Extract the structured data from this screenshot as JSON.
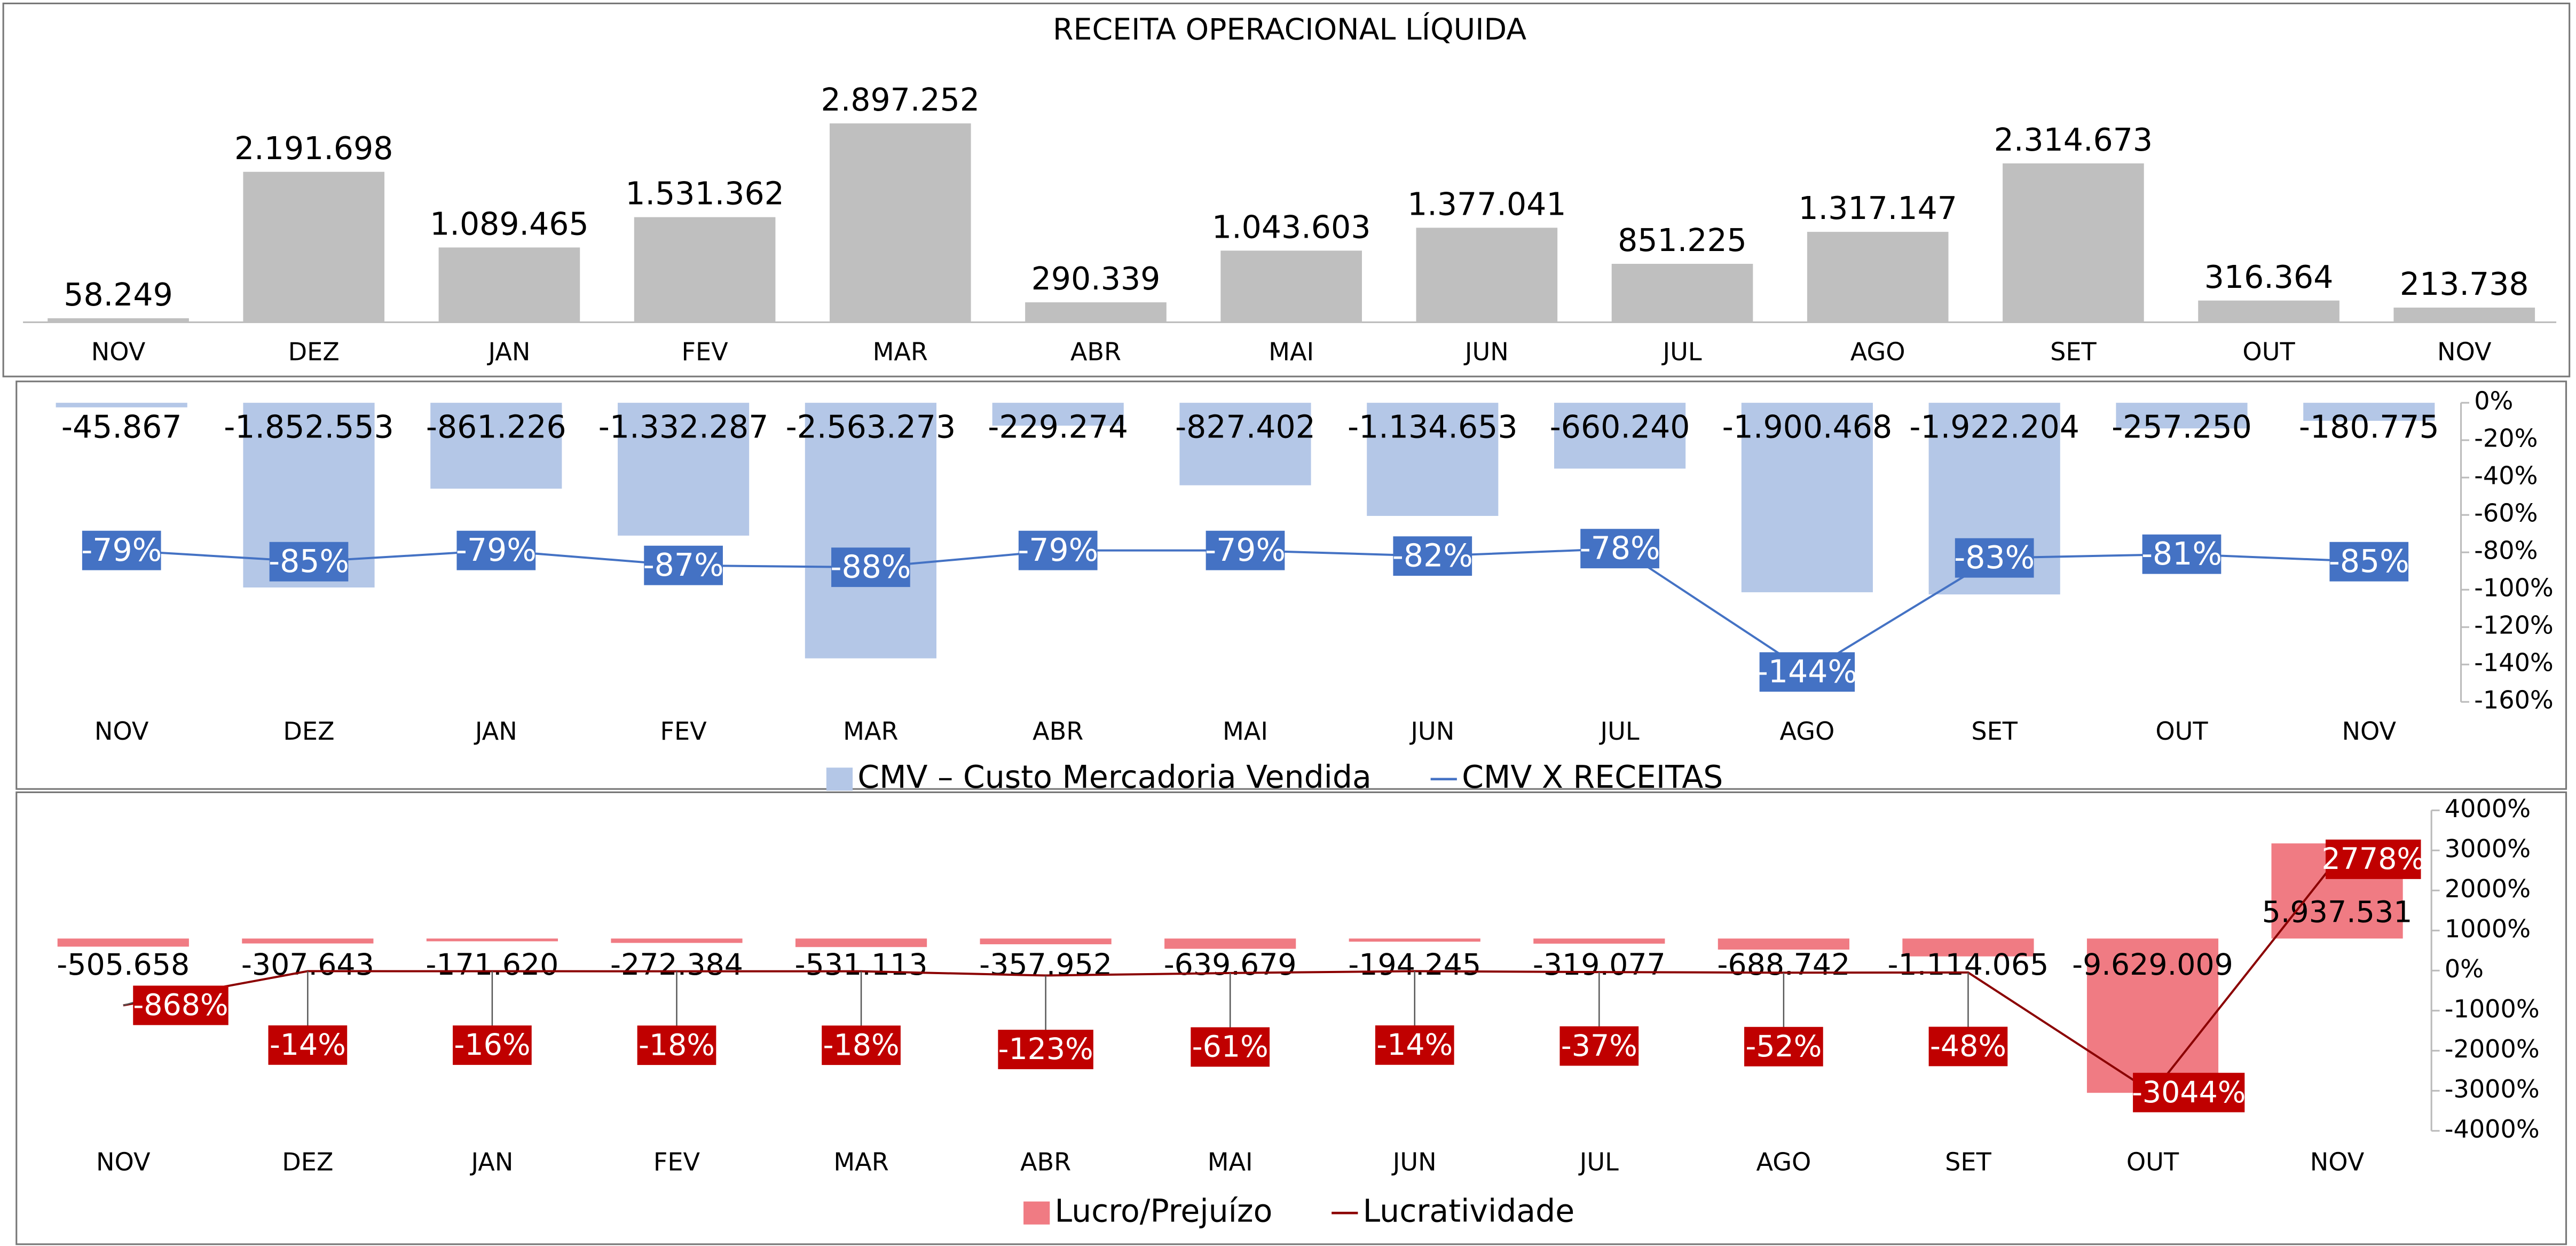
{
  "chart_data": [
    {
      "type": "bar",
      "title": "RECEITA OPERACIONAL LÍQUIDA",
      "categories": [
        "NOV",
        "DEZ",
        "JAN",
        "FEV",
        "MAR",
        "ABR",
        "MAI",
        "JUN",
        "JUL",
        "AGO",
        "SET",
        "OUT",
        "NOV"
      ],
      "series": [
        {
          "name": "Receita",
          "color": "#bfbfbf",
          "values": [
            58249,
            2191698,
            1089465,
            1531362,
            2897252,
            290339,
            1043603,
            1377041,
            851225,
            1317147,
            2314673,
            316364,
            213738
          ],
          "value_labels": [
            "58.249",
            "2.191.698",
            "1.089.465",
            "1.531.362",
            "2.897.252",
            "290.339",
            "1.043.603",
            "1.377.041",
            "851.225",
            "1.317.147",
            "2.314.673",
            "316.364",
            "213.738"
          ]
        }
      ],
      "ylim": [
        0,
        2897252
      ]
    },
    {
      "type": "bar-line",
      "categories": [
        "NOV",
        "DEZ",
        "JAN",
        "FEV",
        "MAR",
        "ABR",
        "MAI",
        "JUN",
        "JUL",
        "AGO",
        "SET",
        "OUT",
        "NOV"
      ],
      "series": [
        {
          "name": "CMV – Custo Mercadoria Vendida",
          "color": "#b4c7e7",
          "values": [
            -45867,
            -1852553,
            -861226,
            -1332287,
            -2563273,
            -229274,
            -827402,
            -1134653,
            -660240,
            -1900468,
            -1922204,
            -257250,
            -180775
          ],
          "value_labels": [
            "-45.867",
            "-1.852.553",
            "-861.226",
            "-1.332.287",
            "-2.563.273",
            "-229.274",
            "-827.402",
            "-1.134.653",
            "-660.240",
            "-1.900.468",
            "-1.922.204",
            "-257.250",
            "-180.775"
          ]
        },
        {
          "name": "CMV X RECEITAS",
          "color": "#4472c4",
          "axis": "y2",
          "values": [
            -79,
            -85,
            -79,
            -87,
            -88,
            -79,
            -79,
            -82,
            -78,
            -144,
            -83,
            -81,
            -85
          ],
          "value_labels": [
            "-79%",
            "-85%",
            "-79%",
            "-87%",
            "-88%",
            "-79%",
            "-79%",
            "-82%",
            "-78%",
            "-144%",
            "-83%",
            "-81%",
            "-85%"
          ]
        }
      ],
      "ylim": [
        -3000000,
        0
      ],
      "y2lim": [
        -160,
        0
      ],
      "y2ticks": [
        {
          "value": 0,
          "label": "0%"
        },
        {
          "value": -20,
          "label": "-20%"
        },
        {
          "value": -40,
          "label": "-40%"
        },
        {
          "value": -60,
          "label": "-60%"
        },
        {
          "value": -80,
          "label": "-80%"
        },
        {
          "value": -100,
          "label": "-100%"
        },
        {
          "value": -120,
          "label": "-120%"
        },
        {
          "value": -140,
          "label": "-140%"
        },
        {
          "value": -160,
          "label": "-160%"
        }
      ],
      "legend": "bottom"
    },
    {
      "type": "bar-line",
      "categories": [
        "NOV",
        "DEZ",
        "JAN",
        "FEV",
        "MAR",
        "ABR",
        "MAI",
        "JUN",
        "JUL",
        "AGO",
        "SET",
        "OUT",
        "NOV"
      ],
      "series": [
        {
          "name": "Lucro/Prejuízo",
          "color": "#f07b83",
          "values": [
            -505658,
            -307643,
            -171620,
            -272384,
            -531113,
            -357952,
            -639679,
            -194245,
            -319077,
            -688742,
            -1114065,
            -9629009,
            5937531
          ],
          "value_labels": [
            "-505.658",
            "-307.643",
            "-171.620",
            "-272.384",
            "-531.113",
            "-357.952",
            "-639.679",
            "-194.245",
            "-319.077",
            "-688.742",
            "-1.114.065",
            "-9.629.009",
            "5.937.531"
          ]
        },
        {
          "name": "Lucratividade",
          "color": "#8b0000",
          "axis": "y2",
          "values": [
            -868,
            -14,
            -16,
            -18,
            -18,
            -123,
            -61,
            -14,
            -37,
            -52,
            -48,
            -3044,
            2778
          ],
          "value_labels": [
            "-868%",
            "-14%",
            "-16%",
            "-18%",
            "-18%",
            "-123%",
            "-61%",
            "-14%",
            "-37%",
            "-52%",
            "-48%",
            "-3044%",
            "2778%"
          ]
        }
      ],
      "ylim": [
        -12000000,
        8000000
      ],
      "y2lim": [
        -4000,
        4000
      ],
      "y2ticks": [
        {
          "value": 4000,
          "label": "4000%"
        },
        {
          "value": 3000,
          "label": "3000%"
        },
        {
          "value": 2000,
          "label": "2000%"
        },
        {
          "value": 1000,
          "label": "1000%"
        },
        {
          "value": 0,
          "label": "0%"
        },
        {
          "value": -1000,
          "label": "-1000%"
        },
        {
          "value": -2000,
          "label": "-2000%"
        },
        {
          "value": -3000,
          "label": "-3000%"
        },
        {
          "value": -4000,
          "label": "-4000%"
        }
      ],
      "legend": "bottom"
    }
  ]
}
